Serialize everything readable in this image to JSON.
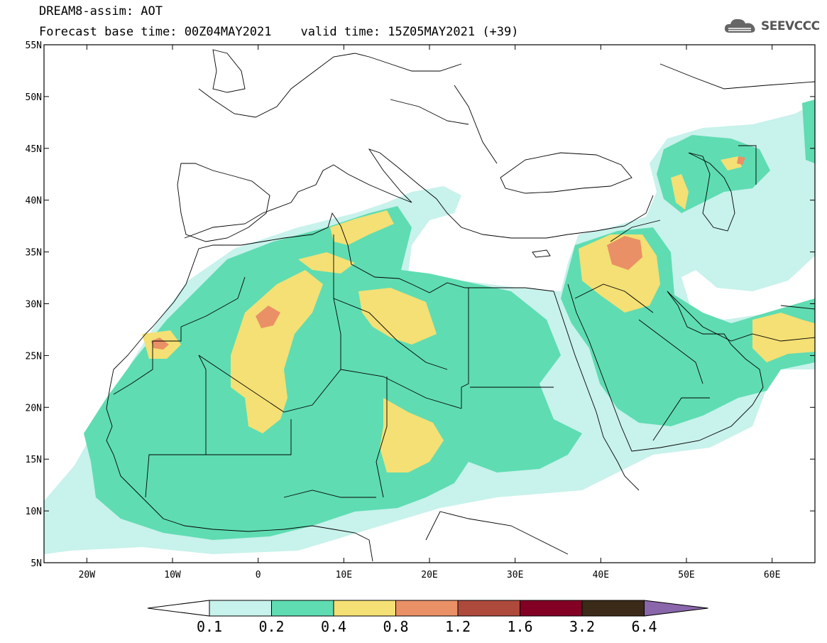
{
  "header": {
    "line1": "DREAM8-assim: AOT",
    "line2": "Forecast base time: 00Z04MAY2021    valid time: 15Z05MAY2021 (+39)"
  },
  "logo": {
    "text": "SEEVCCC",
    "icon": "cloud-icon"
  },
  "map": {
    "lon_range": [
      -25,
      65
    ],
    "lat_range": [
      5,
      55
    ],
    "lat_ticks": [
      "55N",
      "50N",
      "45N",
      "40N",
      "35N",
      "30N",
      "25N",
      "20N",
      "15N",
      "10N",
      "5N"
    ],
    "lon_ticks": [
      "20W",
      "10W",
      "0",
      "10E",
      "20E",
      "30E",
      "40E",
      "50E",
      "60E"
    ]
  },
  "colorbar": {
    "labels": [
      "0.1",
      "0.2",
      "0.4",
      "0.8",
      "1.2",
      "1.6",
      "3.2",
      "6.4"
    ],
    "colors": [
      "#c8f2ec",
      "#5fdcb2",
      "#f4e074",
      "#ea9066",
      "#ad4a3c",
      "#820024",
      "#3c2a18",
      "#8a66aa"
    ]
  }
}
